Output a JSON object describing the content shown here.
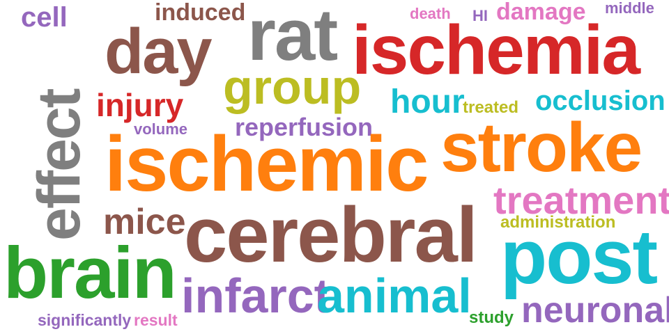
{
  "palette": {
    "brown": "#8c564b",
    "red": "#d62728",
    "gray": "#7f7f7f",
    "purple": "#9467bd",
    "pink": "#e377c2",
    "orange": "#ff7f0e",
    "olive": "#bcbd22",
    "cyan": "#17becf",
    "green": "#2ca02c"
  },
  "words": [
    {
      "key": "ischemia",
      "text": "ischemia",
      "color": "red"
    },
    {
      "key": "rat",
      "text": "rat",
      "color": "gray"
    },
    {
      "key": "day",
      "text": "day",
      "color": "brown"
    },
    {
      "key": "group",
      "text": "group",
      "color": "olive"
    },
    {
      "key": "effect",
      "text": "effect",
      "color": "gray"
    },
    {
      "key": "cell",
      "text": "cell",
      "color": "purple"
    },
    {
      "key": "induced",
      "text": "induced",
      "color": "brown"
    },
    {
      "key": "death",
      "text": "death",
      "color": "pink"
    },
    {
      "key": "hi",
      "text": "HI",
      "color": "purple"
    },
    {
      "key": "damage",
      "text": "damage",
      "color": "pink"
    },
    {
      "key": "middle",
      "text": "middle",
      "color": "purple"
    },
    {
      "key": "injury",
      "text": "injury",
      "color": "red"
    },
    {
      "key": "volume",
      "text": "volume",
      "color": "purple"
    },
    {
      "key": "reperfusion",
      "text": "reperfusion",
      "color": "purple"
    },
    {
      "key": "hour",
      "text": "hour",
      "color": "cyan"
    },
    {
      "key": "treated",
      "text": "treated",
      "color": "olive"
    },
    {
      "key": "occlusion",
      "text": "occlusion",
      "color": "cyan"
    },
    {
      "key": "ischemic",
      "text": "ischemic",
      "color": "orange"
    },
    {
      "key": "stroke",
      "text": "stroke",
      "color": "orange"
    },
    {
      "key": "treatment",
      "text": "treatment",
      "color": "pink"
    },
    {
      "key": "mice",
      "text": "mice",
      "color": "brown"
    },
    {
      "key": "cerebral",
      "text": "cerebral",
      "color": "brown"
    },
    {
      "key": "administration",
      "text": "administration",
      "color": "olive"
    },
    {
      "key": "post",
      "text": "post",
      "color": "cyan"
    },
    {
      "key": "brain",
      "text": "brain",
      "color": "green"
    },
    {
      "key": "infarct",
      "text": "infarct",
      "color": "purple"
    },
    {
      "key": "animal",
      "text": "animal",
      "color": "cyan"
    },
    {
      "key": "neuronal",
      "text": "neuronal",
      "color": "purple"
    },
    {
      "key": "significantly",
      "text": "significantly",
      "color": "purple"
    },
    {
      "key": "result",
      "text": "result",
      "color": "pink"
    },
    {
      "key": "study",
      "text": "study",
      "color": "green"
    }
  ]
}
